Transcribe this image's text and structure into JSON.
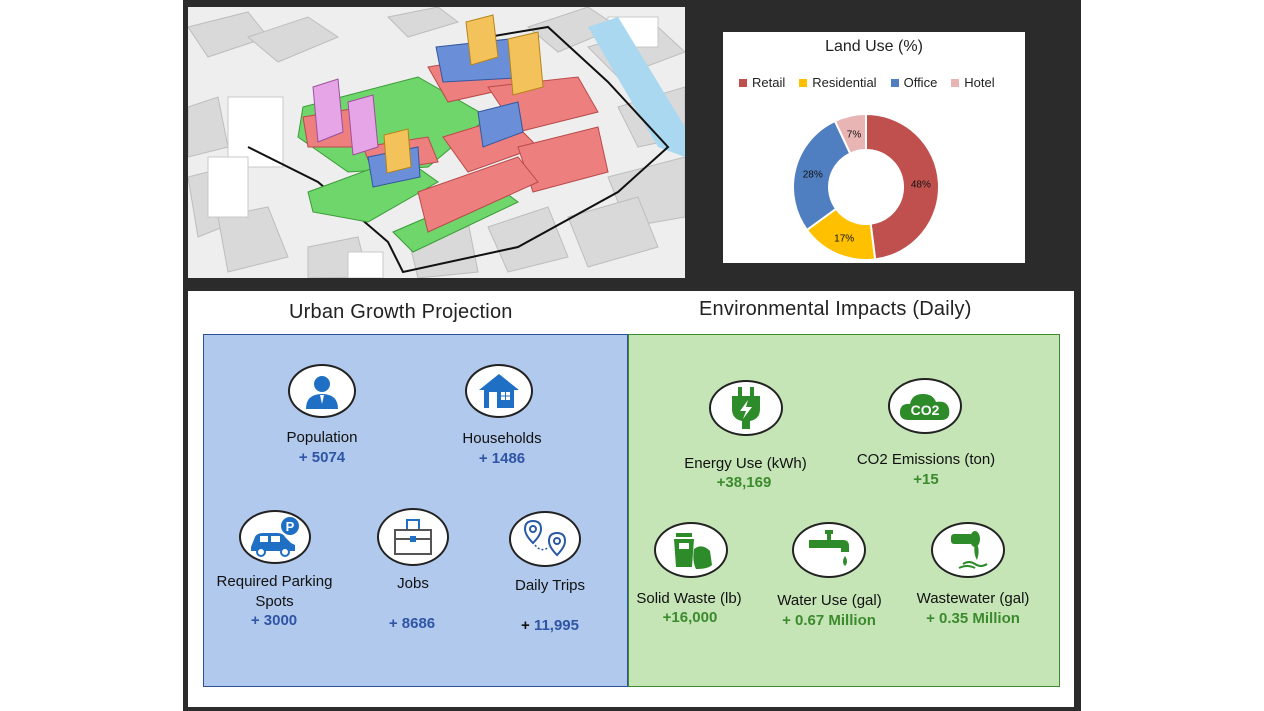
{
  "chart_data": {
    "type": "pie",
    "variant": "donut",
    "title": "Land Use (%)",
    "legend_position": "top",
    "categories": [
      "Retail",
      "Residential",
      "Office",
      "Hotel"
    ],
    "values": [
      48,
      17,
      28,
      7
    ],
    "labels": [
      "48%",
      "17%",
      "28%",
      "7%"
    ],
    "colors": [
      "#c0504d",
      "#ffc000",
      "#4f7fc1",
      "#e8b4b4"
    ]
  },
  "growth": {
    "title": "Urban Growth Projection",
    "population": {
      "label": "Population",
      "value": "+ 5074"
    },
    "households": {
      "label": "Households",
      "value": "+ 1486"
    },
    "parking": {
      "label_line1": "Required Parking",
      "label_line2": "Spots",
      "value": "+ 3000"
    },
    "jobs": {
      "label": "Jobs",
      "value": "+ 8686"
    },
    "trips": {
      "label": "Daily Trips",
      "value_prefix": "+ ",
      "value": "11,995"
    }
  },
  "impacts": {
    "title": "Environmental Impacts (Daily)",
    "energy": {
      "label": "Energy Use (kWh)",
      "value": "+38,169"
    },
    "co2": {
      "label": "CO2 Emissions (ton)",
      "value": "+15",
      "icon_text": "CO2"
    },
    "waste": {
      "label": "Solid Waste (lb)",
      "value": "+16,000"
    },
    "water": {
      "label": "Water Use (gal)",
      "value": "+ 0.67 Million"
    },
    "wastewater": {
      "label": "Wastewater (gal)",
      "value": "+ 0.35 Million"
    }
  },
  "colors": {
    "growth_blue": "#2f55a4",
    "impact_green": "#3c8a2e",
    "icon_blue": "#1f6fc5",
    "icon_green": "#2e8b2a"
  }
}
